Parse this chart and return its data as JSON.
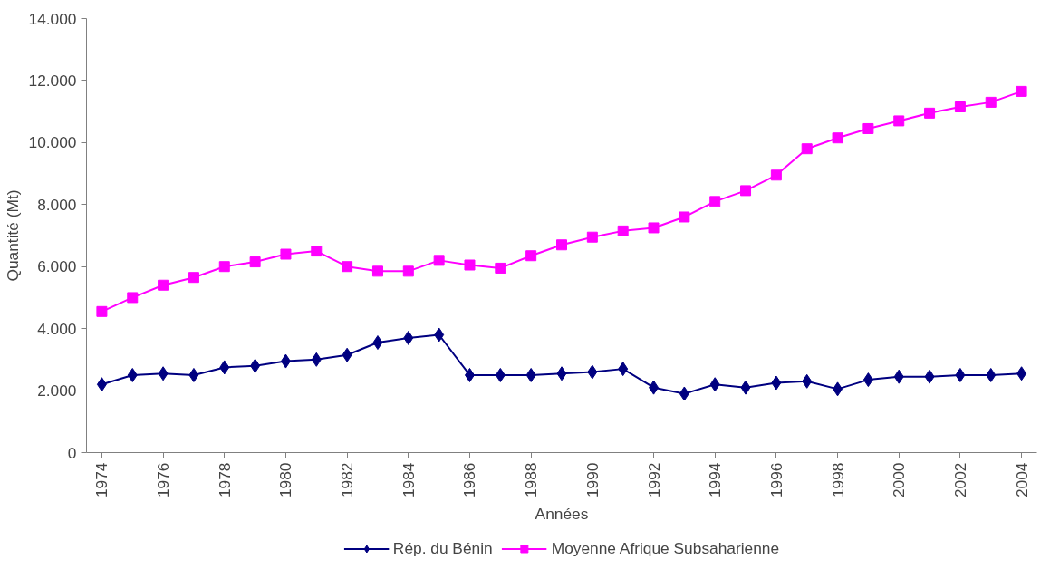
{
  "chart_data": {
    "type": "line",
    "xlabel": "Années",
    "ylabel": "Quantité (Mt)",
    "categories": [
      "1974",
      null,
      "1976",
      null,
      "1978",
      null,
      "1980",
      null,
      "1982",
      null,
      "1984",
      null,
      "1986",
      null,
      "1988",
      null,
      "1990",
      null,
      "1992",
      null,
      "1994",
      null,
      "1996",
      null,
      "1998",
      null,
      "2000",
      null,
      "2002",
      null,
      "2004"
    ],
    "series": [
      {
        "name": "Rép. du Bénin",
        "color": "#000080",
        "marker": "diamond",
        "values": [
          2200,
          2500,
          2550,
          2500,
          2750,
          2800,
          2950,
          3000,
          3150,
          3550,
          3700,
          3800,
          2500,
          2500,
          2500,
          2550,
          2600,
          2700,
          2100,
          1900,
          2200,
          2100,
          2250,
          2300,
          2050,
          2350,
          2450,
          2450,
          2500,
          2500,
          2550
        ]
      },
      {
        "name": "Moyenne Afrique Subsaharienne",
        "color": "#ff00ff",
        "marker": "square",
        "values": [
          4550,
          5000,
          5400,
          5650,
          6000,
          6150,
          6400,
          6500,
          6000,
          5850,
          5850,
          6200,
          6050,
          5950,
          6350,
          6700,
          6950,
          7150,
          7250,
          7600,
          8100,
          8450,
          8950,
          9800,
          10150,
          10450,
          10700,
          10950,
          11150,
          11300,
          11650
        ]
      }
    ],
    "ylim": [
      0,
      14000
    ],
    "yticks": [
      0,
      {
        "value": 2000,
        "label": "2.000"
      },
      {
        "value": 4000,
        "label": "4.000"
      },
      {
        "value": 6000,
        "label": "6.000"
      },
      {
        "value": 8000,
        "label": "8.000"
      },
      {
        "value": 10000,
        "label": "10.000"
      },
      {
        "value": 12000,
        "label": "12.000"
      },
      {
        "value": 14000,
        "label": "14.000"
      }
    ],
    "grid": false,
    "legend": "bottom",
    "line_style": "solid"
  }
}
